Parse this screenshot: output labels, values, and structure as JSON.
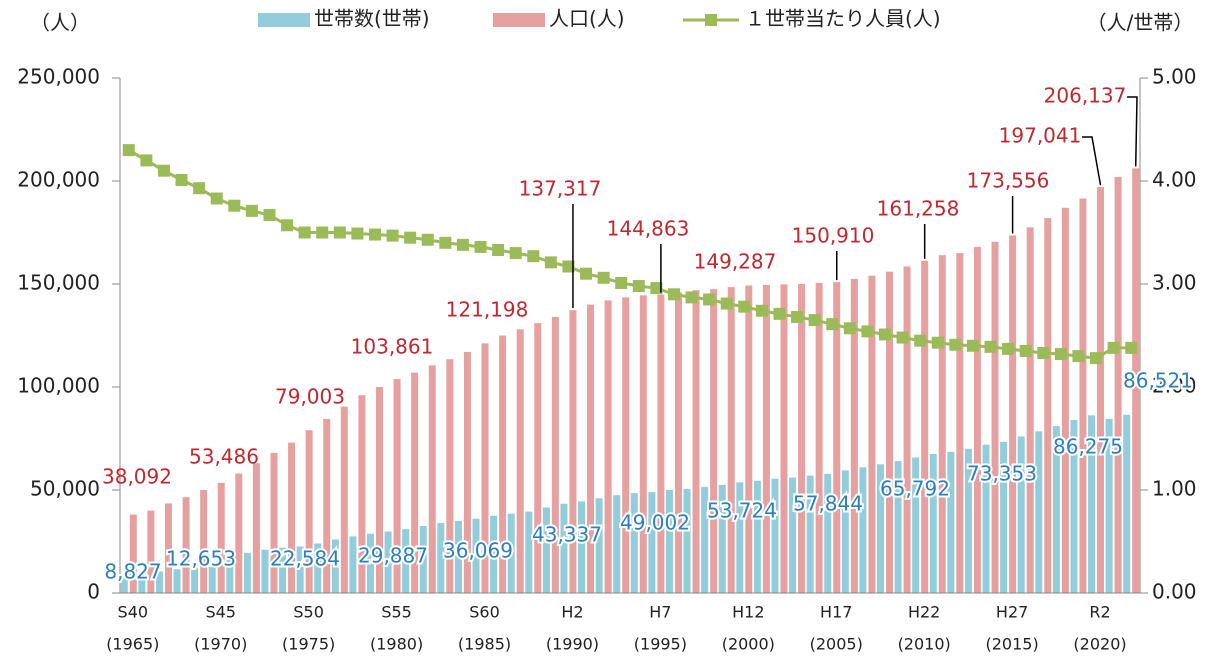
{
  "chart_data": {
    "type": "bar_line",
    "y_unit": "（人）",
    "y2_unit": "（人/世帯）",
    "categories": [
      "S40",
      null,
      null,
      null,
      null,
      "S45",
      null,
      null,
      null,
      null,
      "S50",
      null,
      null,
      null,
      null,
      "S55",
      null,
      null,
      null,
      null,
      "S60",
      null,
      null,
      null,
      null,
      "H2",
      null,
      null,
      null,
      null,
      "H7",
      null,
      null,
      null,
      null,
      "H12",
      null,
      null,
      null,
      null,
      "H17",
      null,
      null,
      null,
      null,
      "H22",
      null,
      null,
      null,
      null,
      "H27",
      null,
      null,
      null,
      null,
      "R2",
      null,
      null
    ],
    "category_years": [
      "(1965)",
      null,
      null,
      null,
      null,
      "(1970)",
      null,
      null,
      null,
      null,
      "(1975)",
      null,
      null,
      null,
      null,
      "(1980)",
      null,
      null,
      null,
      null,
      "(1985)",
      null,
      null,
      null,
      null,
      "(1990)",
      null,
      null,
      null,
      null,
      "(1995)",
      null,
      null,
      null,
      null,
      "(2000)",
      null,
      null,
      null,
      null,
      "(2005)",
      null,
      null,
      null,
      null,
      "(2010)",
      null,
      null,
      null,
      null,
      "(2015)",
      null,
      null,
      null,
      null,
      "(2020)",
      null,
      null
    ],
    "ylim": [
      0,
      250000
    ],
    "yticks": [
      0,
      {
        "value": 50000,
        "label": "50,000"
      },
      {
        "value": 100000,
        "label": "100,000"
      },
      {
        "value": 150000,
        "label": "150,000"
      },
      {
        "value": 200000,
        "label": "200,000"
      },
      {
        "value": 250000,
        "label": "250,000"
      }
    ],
    "y2lim": [
      0,
      5
    ],
    "y2ticks": [
      {
        "value": 0,
        "label": "0.00"
      },
      {
        "value": 1,
        "label": "1.00"
      },
      {
        "value": 2,
        "label": "2.00"
      },
      {
        "value": 3,
        "label": "3.00"
      },
      {
        "value": 4,
        "label": "4.00"
      },
      {
        "value": 5,
        "label": "5.00"
      }
    ],
    "series": [
      {
        "name": "世帯数(世帯)",
        "color": "#92cddc",
        "kind": "bar",
        "values": [
          8827,
          9500,
          10500,
          11500,
          12000,
          12653,
          17500,
          19500,
          21000,
          22000,
          22584,
          24000,
          26000,
          27500,
          28800,
          29887,
          31000,
          32500,
          34000,
          35000,
          36069,
          37500,
          38500,
          39500,
          41500,
          43337,
          44500,
          46000,
          47500,
          48500,
          49002,
          50000,
          50500,
          51500,
          52500,
          53724,
          54500,
          55500,
          56000,
          57000,
          57844,
          59500,
          61000,
          62500,
          64000,
          65792,
          67500,
          68500,
          70000,
          72000,
          73353,
          76000,
          78500,
          81000,
          84000,
          86275,
          84500,
          86521
        ],
        "value_labels": [
          "8,827",
          null,
          null,
          null,
          null,
          "12,653",
          null,
          null,
          null,
          null,
          "22,584",
          null,
          null,
          null,
          null,
          "29,887",
          null,
          null,
          null,
          null,
          "36,069",
          null,
          null,
          null,
          null,
          "43,337",
          null,
          null,
          null,
          null,
          "49,002",
          null,
          null,
          null,
          null,
          "53,724",
          null,
          null,
          null,
          null,
          "57,844",
          null,
          null,
          null,
          null,
          "65,792",
          null,
          null,
          null,
          null,
          "73,353",
          null,
          null,
          null,
          null,
          "86,275",
          null,
          "86,521"
        ]
      },
      {
        "name": "人口(人)",
        "color": "#e6a0a0",
        "kind": "bar",
        "values": [
          38092,
          40000,
          43500,
          46500,
          50000,
          53486,
          58000,
          63000,
          68000,
          73000,
          79003,
          84500,
          90500,
          96000,
          100000,
          103861,
          107000,
          110500,
          113500,
          117000,
          121198,
          125000,
          128000,
          131000,
          134000,
          137317,
          140000,
          142000,
          143500,
          144500,
          144863,
          146000,
          147000,
          147500,
          148500,
          149287,
          149500,
          149800,
          150000,
          150500,
          150910,
          152500,
          154000,
          156000,
          158500,
          161258,
          164000,
          165000,
          168000,
          170500,
          173556,
          177500,
          182000,
          187000,
          191500,
          197041,
          202000,
          206137
        ],
        "value_labels": [
          "38,092",
          null,
          null,
          null,
          null,
          "53,486",
          null,
          null,
          null,
          null,
          "79,003",
          null,
          null,
          null,
          null,
          "103,861",
          null,
          null,
          null,
          null,
          "121,198",
          null,
          null,
          null,
          null,
          "137,317",
          null,
          null,
          null,
          null,
          "144,863",
          null,
          null,
          null,
          null,
          "149,287",
          null,
          null,
          null,
          null,
          "150,910",
          null,
          null,
          null,
          null,
          "161,258",
          null,
          null,
          null,
          null,
          "173,556",
          null,
          null,
          null,
          null,
          "197,041",
          null,
          "206,137"
        ]
      },
      {
        "name": "１世帯当たり人員(人)",
        "color": "#9bbb59",
        "kind": "line",
        "axis": "y2",
        "values": [
          4.3,
          4.2,
          4.1,
          4.01,
          3.93,
          3.83,
          3.76,
          3.71,
          3.67,
          3.57,
          3.5,
          3.5,
          3.5,
          3.49,
          3.48,
          3.47,
          3.45,
          3.43,
          3.4,
          3.38,
          3.36,
          3.33,
          3.3,
          3.27,
          3.21,
          3.17,
          3.1,
          3.06,
          3.01,
          2.98,
          2.96,
          2.9,
          2.87,
          2.85,
          2.81,
          2.78,
          2.74,
          2.71,
          2.68,
          2.65,
          2.61,
          2.57,
          2.54,
          2.51,
          2.48,
          2.45,
          2.43,
          2.41,
          2.4,
          2.39,
          2.37,
          2.35,
          2.33,
          2.32,
          2.3,
          2.28,
          2.38,
          2.38
        ]
      }
    ]
  }
}
